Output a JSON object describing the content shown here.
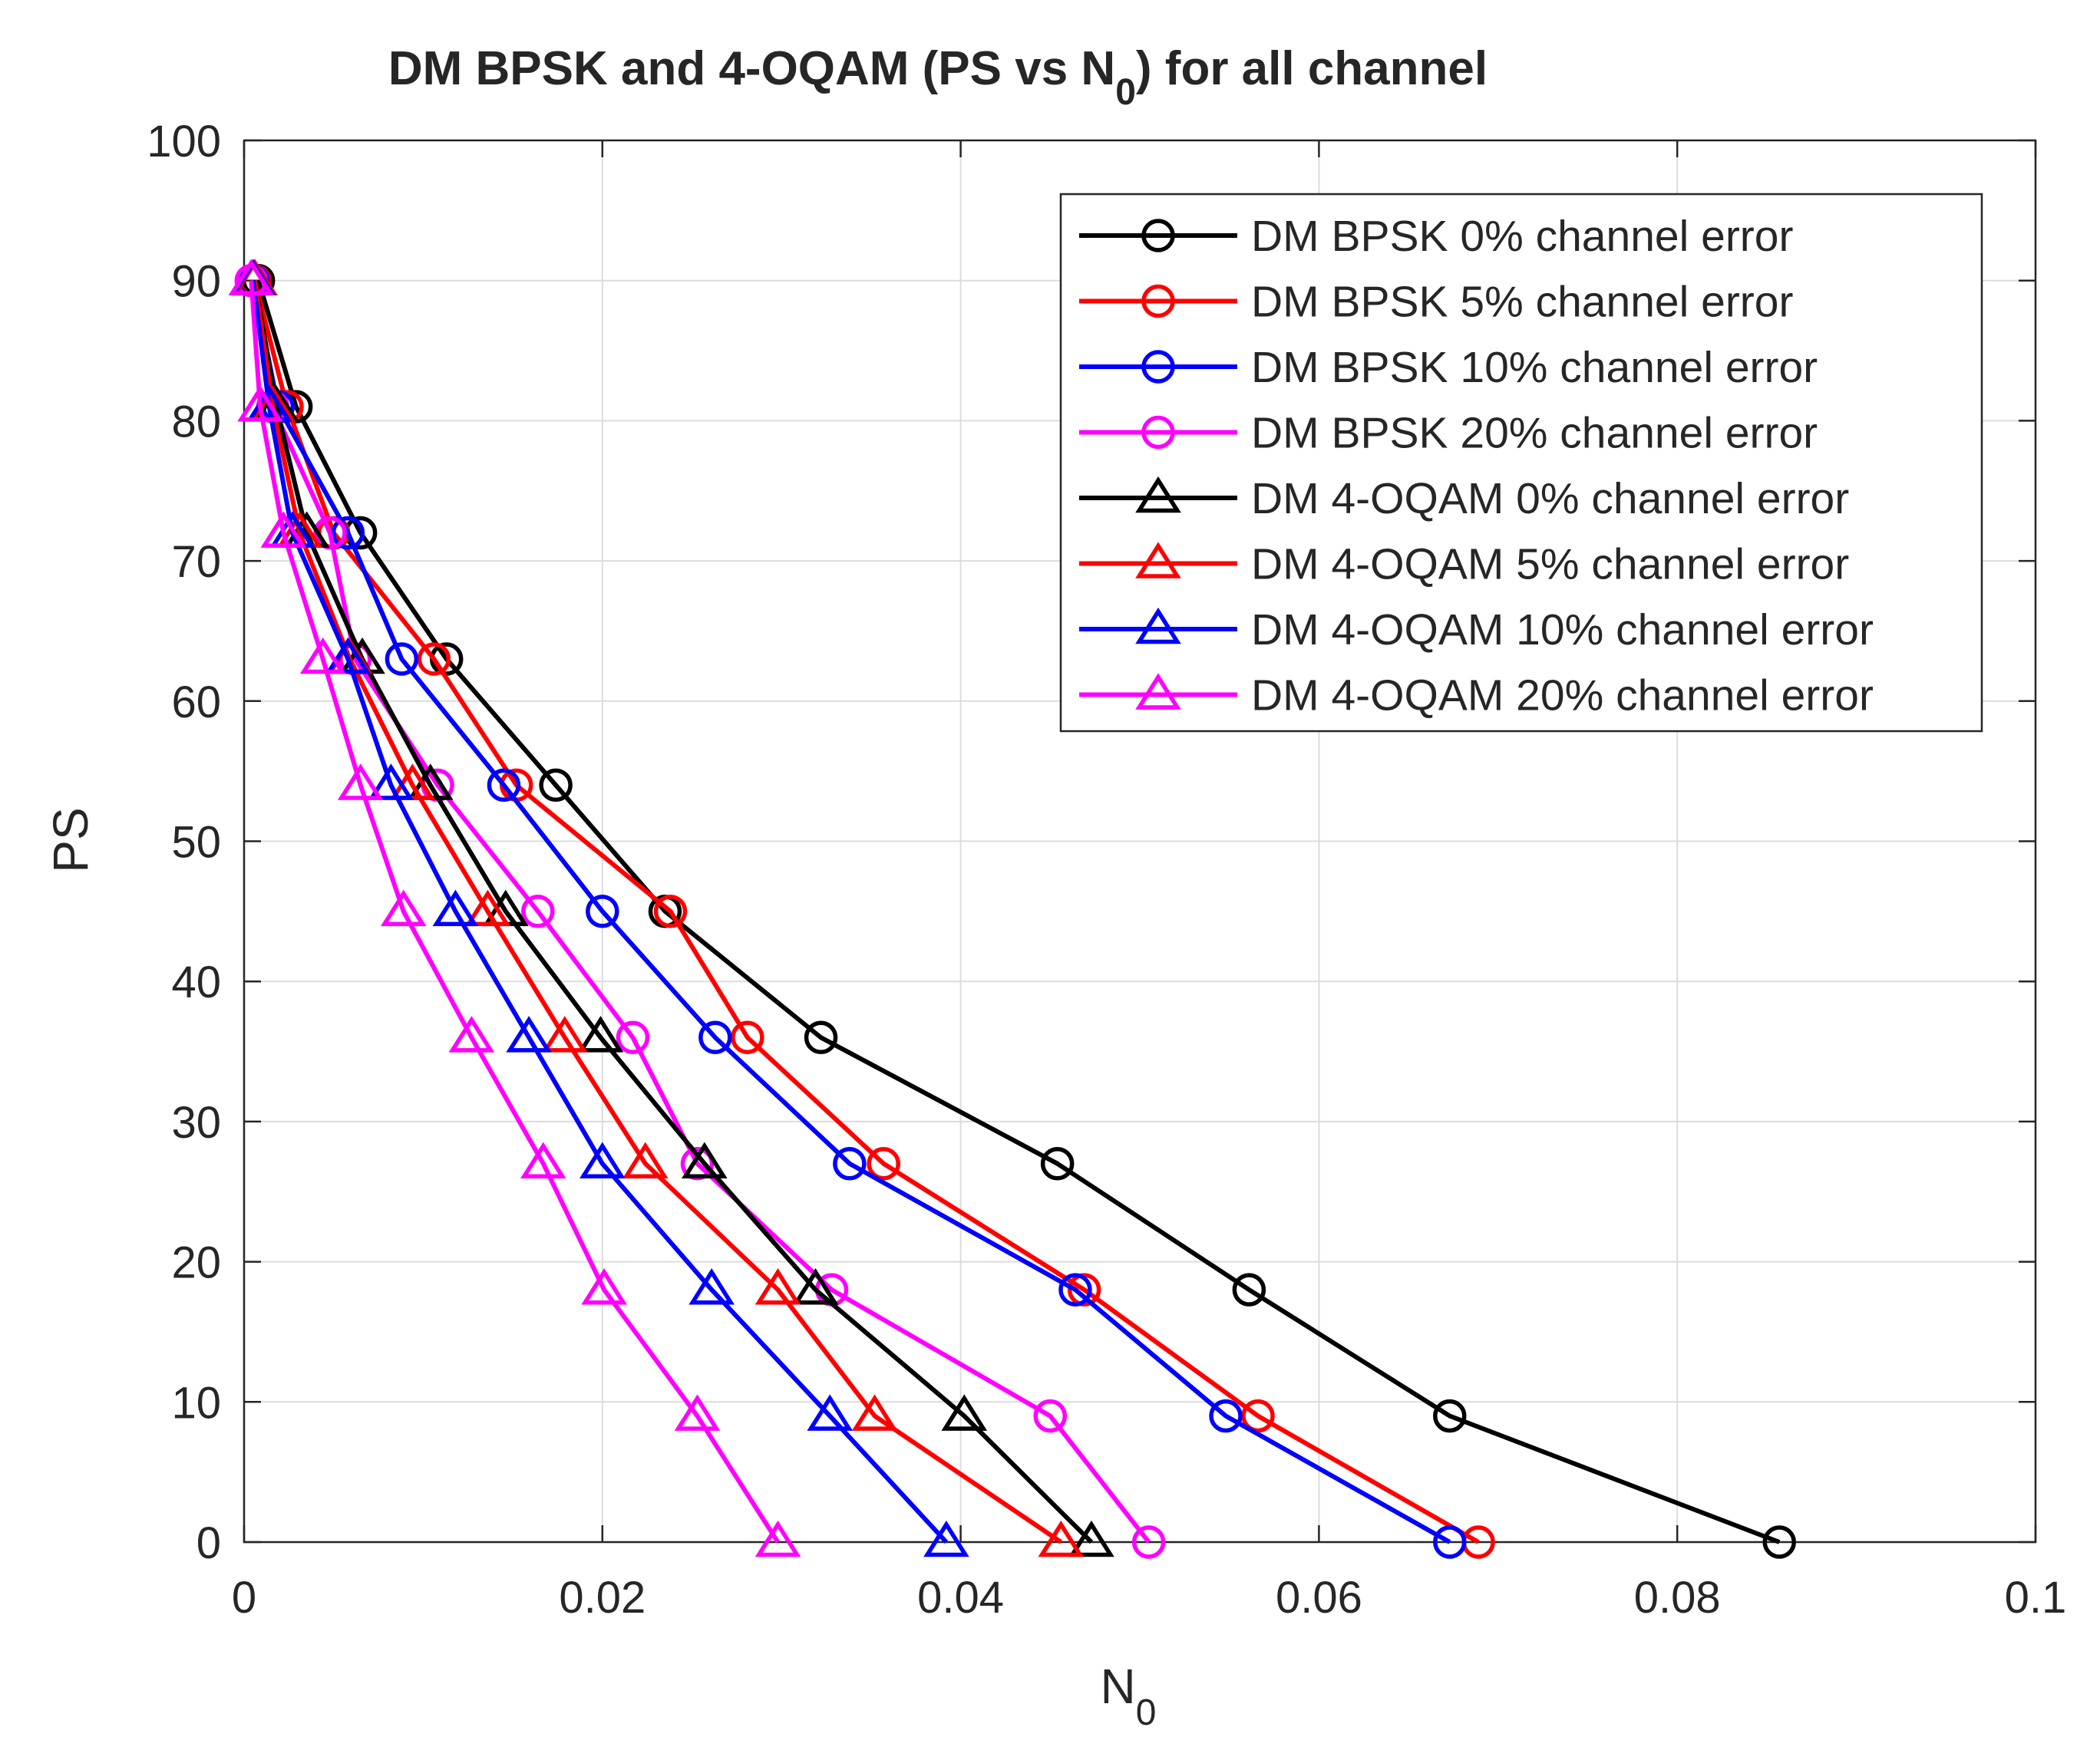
{
  "chart_data": {
    "type": "line",
    "title_main": "DM BPSK and 4-OQAM (PS vs N",
    "title_sub": "0",
    "title_tail": ") for all channel",
    "xlabel_main": "N",
    "xlabel_sub": "0",
    "ylabel": "PS",
    "xlim": [
      0,
      0.1
    ],
    "ylim": [
      0,
      100
    ],
    "grid": true,
    "legend_position": "top-right",
    "x_tick_labels": [
      {
        "value": 0,
        "label": "0"
      },
      {
        "value": 0.02,
        "label": "0.02"
      },
      {
        "value": 0.04,
        "label": "0.04"
      },
      {
        "value": 0.06,
        "label": "0.06"
      },
      {
        "value": 0.08,
        "label": "0.08"
      },
      {
        "value": 0.1,
        "label": "0.1"
      }
    ],
    "y_tick_labels": [
      {
        "value": 0,
        "label": "0"
      },
      {
        "value": 10,
        "label": "10"
      },
      {
        "value": 20,
        "label": "20"
      },
      {
        "value": 30,
        "label": "30"
      },
      {
        "value": 40,
        "label": "40"
      },
      {
        "value": 50,
        "label": "50"
      },
      {
        "value": 60,
        "label": "60"
      },
      {
        "value": 70,
        "label": "70"
      },
      {
        "value": 80,
        "label": "80"
      },
      {
        "value": 90,
        "label": "90"
      },
      {
        "value": 100,
        "label": "100"
      }
    ],
    "series": [
      {
        "name": "DM BPSK 0% channel error",
        "color": "#000000",
        "marker": "circle",
        "points": [
          [
            0.0008,
            90
          ],
          [
            0.0029,
            81
          ],
          [
            0.0065,
            72
          ],
          [
            0.0113,
            63
          ],
          [
            0.0174,
            54
          ],
          [
            0.0235,
            45
          ],
          [
            0.0322,
            36
          ],
          [
            0.0454,
            27
          ],
          [
            0.0561,
            18
          ],
          [
            0.0673,
            9
          ],
          [
            0.0857,
            0
          ]
        ]
      },
      {
        "name": "DM BPSK 5% channel error",
        "color": "#ff0000",
        "marker": "circle",
        "points": [
          [
            0.0006,
            90
          ],
          [
            0.0024,
            81
          ],
          [
            0.005,
            72
          ],
          [
            0.0106,
            63
          ],
          [
            0.0152,
            54
          ],
          [
            0.0238,
            45
          ],
          [
            0.0281,
            36
          ],
          [
            0.0357,
            27
          ],
          [
            0.0469,
            18
          ],
          [
            0.0566,
            9
          ],
          [
            0.0689,
            0
          ]
        ]
      },
      {
        "name": "DM BPSK 10% channel error",
        "color": "#0000ff",
        "marker": "circle",
        "points": [
          [
            0.0005,
            90
          ],
          [
            0.0019,
            81
          ],
          [
            0.0058,
            72
          ],
          [
            0.0088,
            63
          ],
          [
            0.0145,
            54
          ],
          [
            0.02,
            45
          ],
          [
            0.0263,
            36
          ],
          [
            0.0338,
            27
          ],
          [
            0.0464,
            18
          ],
          [
            0.0548,
            9
          ],
          [
            0.0673,
            0
          ]
        ]
      },
      {
        "name": "DM BPSK 20% channel error",
        "color": "#ff00ff",
        "marker": "circle",
        "points": [
          [
            0.0004,
            90
          ],
          [
            0.0016,
            81
          ],
          [
            0.0048,
            72
          ],
          [
            0.0062,
            63
          ],
          [
            0.0108,
            54
          ],
          [
            0.0164,
            45
          ],
          [
            0.0217,
            36
          ],
          [
            0.0253,
            27
          ],
          [
            0.0328,
            18
          ],
          [
            0.045,
            9
          ],
          [
            0.0505,
            0
          ]
        ]
      },
      {
        "name": "DM 4-OQAM 0% channel error",
        "color": "#000000",
        "marker": "triangle",
        "points": [
          [
            0.0006,
            90
          ],
          [
            0.0018,
            81
          ],
          [
            0.0035,
            72
          ],
          [
            0.0066,
            63
          ],
          [
            0.0104,
            54
          ],
          [
            0.0146,
            45
          ],
          [
            0.0199,
            36
          ],
          [
            0.0257,
            27
          ],
          [
            0.0319,
            18
          ],
          [
            0.0402,
            9
          ],
          [
            0.0473,
            0
          ]
        ]
      },
      {
        "name": "DM 4-OQAM 5% channel error",
        "color": "#ff0000",
        "marker": "triangle",
        "points": [
          [
            0.0006,
            90
          ],
          [
            0.0016,
            81
          ],
          [
            0.0031,
            72
          ],
          [
            0.0059,
            63
          ],
          [
            0.0094,
            54
          ],
          [
            0.0136,
            45
          ],
          [
            0.0179,
            36
          ],
          [
            0.0224,
            27
          ],
          [
            0.0298,
            18
          ],
          [
            0.0352,
            9
          ],
          [
            0.0456,
            0
          ]
        ]
      },
      {
        "name": "DM 4-OQAM 10% channel error",
        "color": "#0000ff",
        "marker": "triangle",
        "points": [
          [
            0.0005,
            90
          ],
          [
            0.0014,
            81
          ],
          [
            0.0027,
            72
          ],
          [
            0.0058,
            63
          ],
          [
            0.0082,
            54
          ],
          [
            0.0118,
            45
          ],
          [
            0.0159,
            36
          ],
          [
            0.02,
            27
          ],
          [
            0.0261,
            18
          ],
          [
            0.0327,
            9
          ],
          [
            0.0392,
            0
          ]
        ]
      },
      {
        "name": "DM 4-OQAM 20% channel error",
        "color": "#ff00ff",
        "marker": "triangle",
        "points": [
          [
            0.0004,
            90
          ],
          [
            0.0009,
            81
          ],
          [
            0.0022,
            72
          ],
          [
            0.0044,
            63
          ],
          [
            0.0065,
            54
          ],
          [
            0.0089,
            45
          ],
          [
            0.0127,
            36
          ],
          [
            0.0167,
            27
          ],
          [
            0.0201,
            18
          ],
          [
            0.0253,
            9
          ],
          [
            0.0298,
            0
          ]
        ]
      }
    ]
  }
}
